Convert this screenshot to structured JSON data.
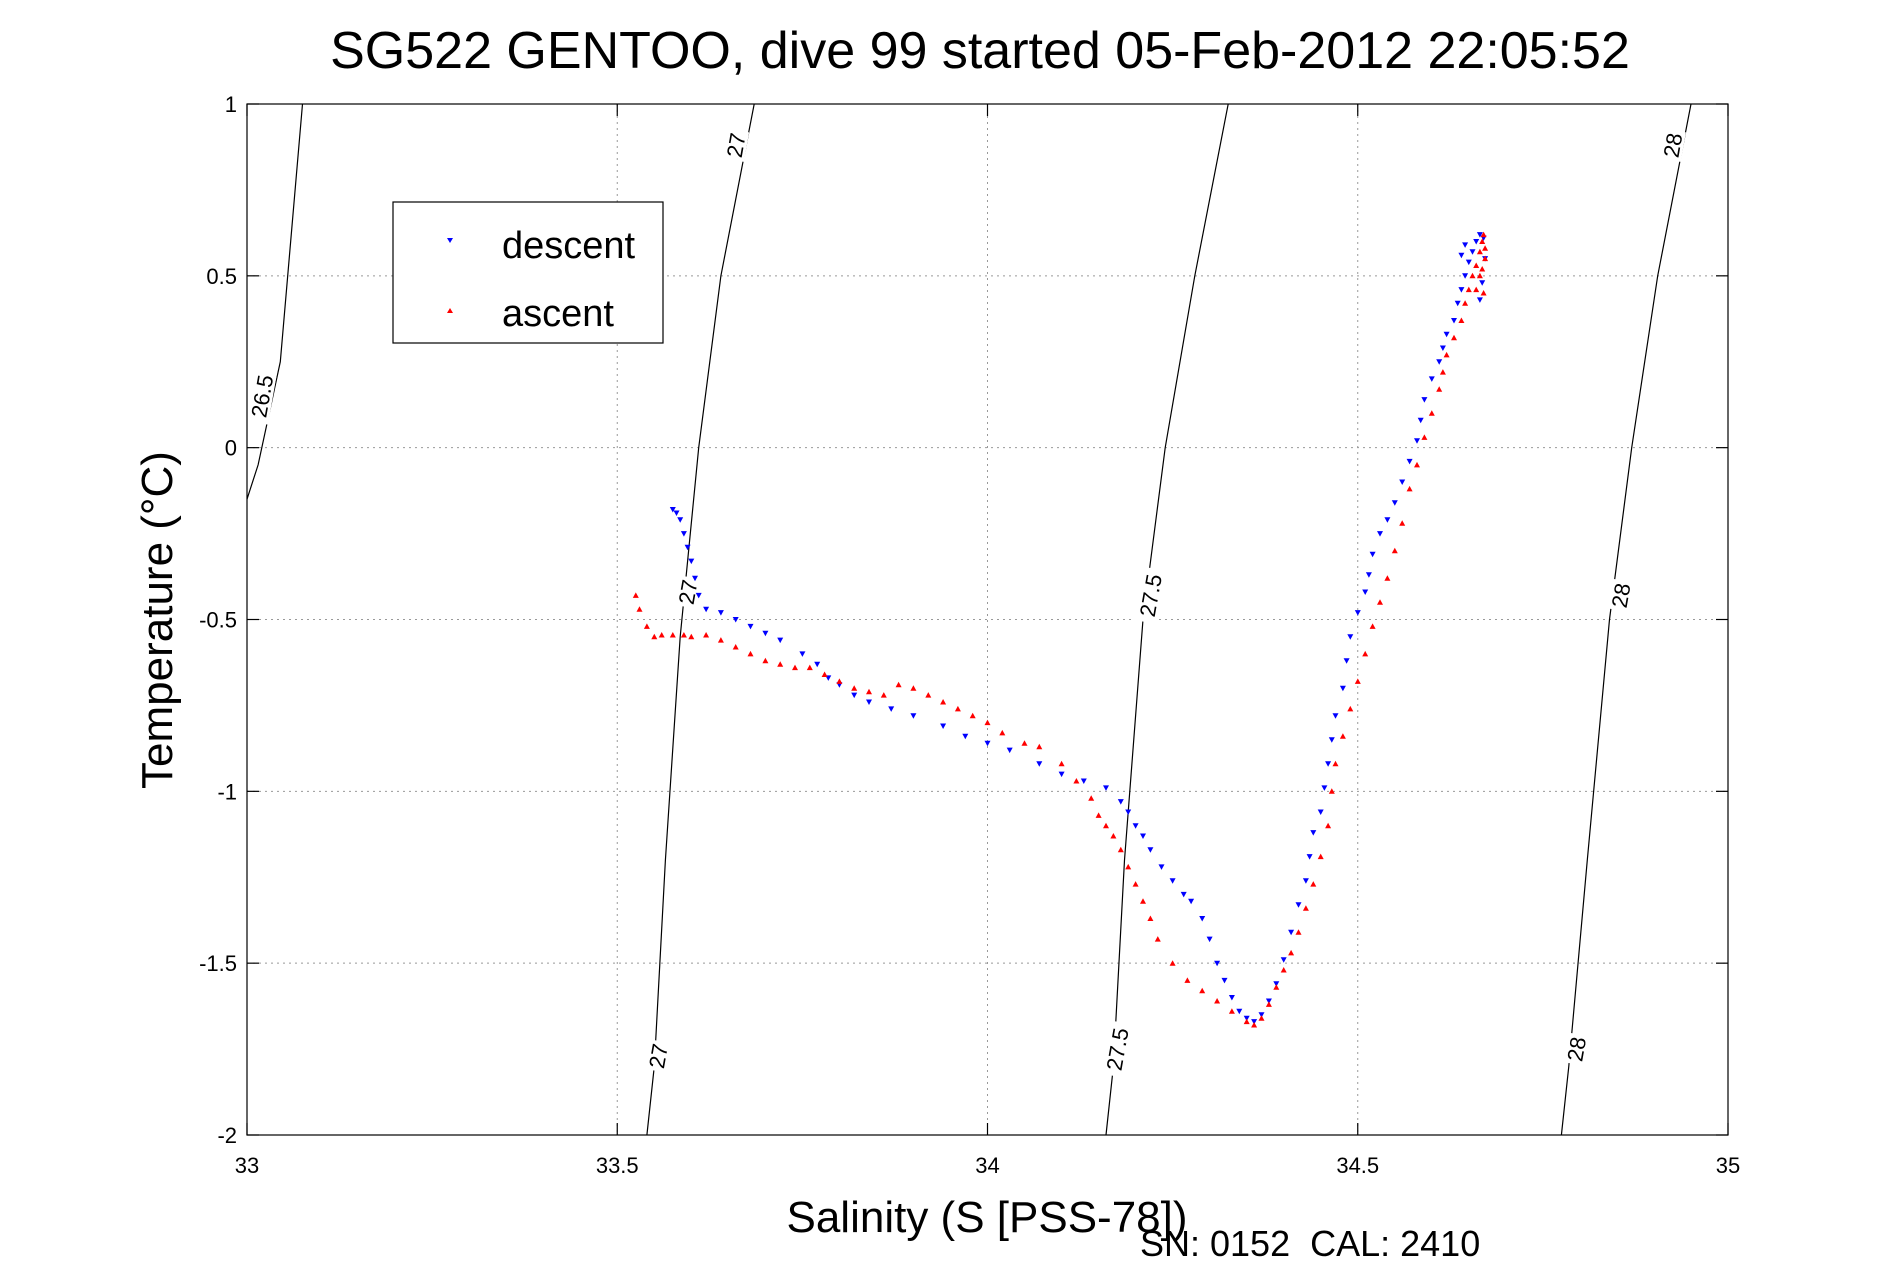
{
  "chart_data": {
    "type": "scatter",
    "title": "SG522 GENTOO, dive 99 started 05-Feb-2012 22:05:52",
    "xlabel": "Salinity (S [PSS-78])",
    "ylabel": "Temperature (°C)",
    "footer": "SN: 0152  CAL: 2410",
    "xlim": [
      33,
      35
    ],
    "ylim": [
      -2,
      1
    ],
    "xticks": [
      33,
      33.5,
      34,
      34.5,
      35
    ],
    "xtick_labels": [
      "33",
      "33.5",
      "34",
      "34.5",
      "35"
    ],
    "yticks": [
      1,
      0.5,
      0,
      -0.5,
      -1,
      -1.5,
      -2
    ],
    "ytick_labels": [
      "1",
      "0.5",
      "0",
      "-0.5",
      "-1",
      "-1.5",
      "-2"
    ],
    "grid": true,
    "legend_position": "top-left",
    "series": [
      {
        "name": "descent",
        "color": "#0000ff",
        "marker": "triangle-down",
        "points": [
          [
            33.575,
            -0.18
          ],
          [
            33.58,
            -0.19
          ],
          [
            33.585,
            -0.21
          ],
          [
            33.59,
            -0.25
          ],
          [
            33.595,
            -0.29
          ],
          [
            33.6,
            -0.33
          ],
          [
            33.605,
            -0.38
          ],
          [
            33.61,
            -0.43
          ],
          [
            33.62,
            -0.47
          ],
          [
            33.64,
            -0.48
          ],
          [
            33.66,
            -0.5
          ],
          [
            33.68,
            -0.52
          ],
          [
            33.7,
            -0.54
          ],
          [
            33.72,
            -0.56
          ],
          [
            33.75,
            -0.6
          ],
          [
            33.77,
            -0.63
          ],
          [
            33.785,
            -0.67
          ],
          [
            33.8,
            -0.69
          ],
          [
            33.82,
            -0.72
          ],
          [
            33.84,
            -0.74
          ],
          [
            33.87,
            -0.76
          ],
          [
            33.9,
            -0.78
          ],
          [
            33.94,
            -0.81
          ],
          [
            33.97,
            -0.84
          ],
          [
            34.0,
            -0.86
          ],
          [
            34.03,
            -0.88
          ],
          [
            34.07,
            -0.92
          ],
          [
            34.1,
            -0.95
          ],
          [
            34.13,
            -0.97
          ],
          [
            34.16,
            -0.99
          ],
          [
            34.18,
            -1.03
          ],
          [
            34.19,
            -1.06
          ],
          [
            34.2,
            -1.1
          ],
          [
            34.21,
            -1.13
          ],
          [
            34.22,
            -1.17
          ],
          [
            34.235,
            -1.22
          ],
          [
            34.25,
            -1.26
          ],
          [
            34.265,
            -1.3
          ],
          [
            34.275,
            -1.32
          ],
          [
            34.29,
            -1.37
          ],
          [
            34.3,
            -1.43
          ],
          [
            34.31,
            -1.5
          ],
          [
            34.32,
            -1.55
          ],
          [
            34.33,
            -1.6
          ],
          [
            34.34,
            -1.64
          ],
          [
            34.35,
            -1.66
          ],
          [
            34.36,
            -1.67
          ],
          [
            34.37,
            -1.65
          ],
          [
            34.38,
            -1.61
          ],
          [
            34.39,
            -1.56
          ],
          [
            34.4,
            -1.49
          ],
          [
            34.41,
            -1.41
          ],
          [
            34.42,
            -1.33
          ],
          [
            34.43,
            -1.26
          ],
          [
            34.435,
            -1.19
          ],
          [
            34.44,
            -1.12
          ],
          [
            34.45,
            -1.06
          ],
          [
            34.455,
            -0.99
          ],
          [
            34.46,
            -0.92
          ],
          [
            34.465,
            -0.85
          ],
          [
            34.47,
            -0.78
          ],
          [
            34.48,
            -0.7
          ],
          [
            34.485,
            -0.62
          ],
          [
            34.49,
            -0.55
          ],
          [
            34.5,
            -0.48
          ],
          [
            34.51,
            -0.42
          ],
          [
            34.515,
            -0.37
          ],
          [
            34.52,
            -0.31
          ],
          [
            34.53,
            -0.25
          ],
          [
            34.54,
            -0.21
          ],
          [
            34.55,
            -0.16
          ],
          [
            34.56,
            -0.1
          ],
          [
            34.57,
            -0.04
          ],
          [
            34.58,
            0.02
          ],
          [
            34.585,
            0.08
          ],
          [
            34.59,
            0.14
          ],
          [
            34.6,
            0.2
          ],
          [
            34.61,
            0.25
          ],
          [
            34.615,
            0.29
          ],
          [
            34.62,
            0.33
          ],
          [
            34.63,
            0.37
          ],
          [
            34.635,
            0.42
          ],
          [
            34.64,
            0.46
          ],
          [
            34.645,
            0.5
          ],
          [
            34.65,
            0.54
          ],
          [
            34.655,
            0.57
          ],
          [
            34.66,
            0.6
          ],
          [
            34.665,
            0.62
          ],
          [
            34.67,
            0.61
          ],
          [
            34.672,
            0.55
          ],
          [
            34.668,
            0.48
          ],
          [
            34.665,
            0.43
          ],
          [
            34.64,
            0.56
          ],
          [
            34.645,
            0.59
          ]
        ]
      },
      {
        "name": "ascent",
        "color": "#ff0000",
        "marker": "triangle-up",
        "points": [
          [
            33.525,
            -0.43
          ],
          [
            33.53,
            -0.47
          ],
          [
            33.54,
            -0.52
          ],
          [
            33.55,
            -0.55
          ],
          [
            33.56,
            -0.545
          ],
          [
            33.575,
            -0.545
          ],
          [
            33.59,
            -0.545
          ],
          [
            33.6,
            -0.55
          ],
          [
            33.62,
            -0.545
          ],
          [
            33.64,
            -0.56
          ],
          [
            33.66,
            -0.58
          ],
          [
            33.68,
            -0.6
          ],
          [
            33.7,
            -0.62
          ],
          [
            33.72,
            -0.63
          ],
          [
            33.74,
            -0.64
          ],
          [
            33.76,
            -0.64
          ],
          [
            33.78,
            -0.66
          ],
          [
            33.8,
            -0.68
          ],
          [
            33.82,
            -0.7
          ],
          [
            33.84,
            -0.71
          ],
          [
            33.86,
            -0.72
          ],
          [
            33.88,
            -0.69
          ],
          [
            33.9,
            -0.7
          ],
          [
            33.92,
            -0.72
          ],
          [
            33.94,
            -0.74
          ],
          [
            33.96,
            -0.76
          ],
          [
            33.98,
            -0.78
          ],
          [
            34.0,
            -0.8
          ],
          [
            34.02,
            -0.83
          ],
          [
            34.05,
            -0.86
          ],
          [
            34.07,
            -0.87
          ],
          [
            34.1,
            -0.92
          ],
          [
            34.12,
            -0.97
          ],
          [
            34.14,
            -1.02
          ],
          [
            34.15,
            -1.07
          ],
          [
            34.16,
            -1.1
          ],
          [
            34.17,
            -1.13
          ],
          [
            34.18,
            -1.17
          ],
          [
            34.19,
            -1.22
          ],
          [
            34.2,
            -1.27
          ],
          [
            34.21,
            -1.32
          ],
          [
            34.22,
            -1.37
          ],
          [
            34.23,
            -1.43
          ],
          [
            34.25,
            -1.5
          ],
          [
            34.27,
            -1.55
          ],
          [
            34.29,
            -1.58
          ],
          [
            34.31,
            -1.61
          ],
          [
            34.33,
            -1.64
          ],
          [
            34.35,
            -1.67
          ],
          [
            34.36,
            -1.68
          ],
          [
            34.37,
            -1.66
          ],
          [
            34.38,
            -1.62
          ],
          [
            34.39,
            -1.57
          ],
          [
            34.4,
            -1.52
          ],
          [
            34.41,
            -1.47
          ],
          [
            34.42,
            -1.41
          ],
          [
            34.43,
            -1.34
          ],
          [
            34.44,
            -1.27
          ],
          [
            34.45,
            -1.19
          ],
          [
            34.46,
            -1.1
          ],
          [
            34.465,
            -1.0
          ],
          [
            34.47,
            -0.92
          ],
          [
            34.48,
            -0.84
          ],
          [
            34.49,
            -0.76
          ],
          [
            34.5,
            -0.68
          ],
          [
            34.51,
            -0.6
          ],
          [
            34.52,
            -0.52
          ],
          [
            34.53,
            -0.45
          ],
          [
            34.54,
            -0.38
          ],
          [
            34.55,
            -0.3
          ],
          [
            34.56,
            -0.22
          ],
          [
            34.57,
            -0.12
          ],
          [
            34.58,
            -0.05
          ],
          [
            34.59,
            0.03
          ],
          [
            34.6,
            0.1
          ],
          [
            34.61,
            0.17
          ],
          [
            34.615,
            0.22
          ],
          [
            34.62,
            0.27
          ],
          [
            34.63,
            0.32
          ],
          [
            34.64,
            0.37
          ],
          [
            34.645,
            0.42
          ],
          [
            34.65,
            0.46
          ],
          [
            34.655,
            0.5
          ],
          [
            34.66,
            0.53
          ],
          [
            34.665,
            0.57
          ],
          [
            34.668,
            0.6
          ],
          [
            34.67,
            0.62
          ],
          [
            34.672,
            0.58
          ],
          [
            34.668,
            0.52
          ],
          [
            34.66,
            0.46
          ],
          [
            34.672,
            0.55
          ],
          [
            34.665,
            0.5
          ],
          [
            34.67,
            0.45
          ]
        ]
      }
    ],
    "contours": [
      {
        "level_label": "26.5",
        "points": [
          [
            33.0,
            -0.15
          ],
          [
            33.015,
            -0.05
          ],
          [
            33.045,
            0.25
          ],
          [
            33.075,
            1.0
          ]
        ]
      },
      {
        "level_label": "27",
        "points": [
          [
            33.54,
            -2.0
          ],
          [
            33.55,
            -1.8
          ],
          [
            33.565,
            -1.2
          ],
          [
            33.585,
            -0.55
          ],
          [
            33.61,
            0.0
          ],
          [
            33.64,
            0.5
          ],
          [
            33.685,
            1.0
          ]
        ]
      },
      {
        "level_label": "27.5",
        "points": [
          [
            34.16,
            -2.0
          ],
          [
            34.17,
            -1.8
          ],
          [
            34.185,
            -1.2
          ],
          [
            34.21,
            -0.5
          ],
          [
            34.24,
            0.0
          ],
          [
            34.28,
            0.5
          ],
          [
            34.325,
            1.0
          ]
        ]
      },
      {
        "level_label": "28",
        "points": [
          [
            34.775,
            -2.0
          ],
          [
            34.785,
            -1.8
          ],
          [
            34.81,
            -1.2
          ],
          [
            34.84,
            -0.5
          ],
          [
            34.87,
            0.0
          ],
          [
            34.905,
            0.5
          ],
          [
            34.95,
            1.0
          ]
        ]
      }
    ],
    "contour_labels": [
      {
        "text": "26.5",
        "at": [
          33.02,
          0.15
        ]
      },
      {
        "text": "27",
        "at": [
          33.66,
          0.88
        ]
      },
      {
        "text": "27",
        "at": [
          33.595,
          -0.42
        ]
      },
      {
        "text": "27",
        "at": [
          33.555,
          -1.77
        ]
      },
      {
        "text": "27.5",
        "at": [
          34.22,
          -0.43
        ]
      },
      {
        "text": "27.5",
        "at": [
          34.175,
          -1.75
        ]
      },
      {
        "text": "28",
        "at": [
          34.925,
          0.88
        ]
      },
      {
        "text": "28",
        "at": [
          34.855,
          -0.43
        ]
      },
      {
        "text": "28",
        "at": [
          34.795,
          -1.75
        ]
      }
    ]
  }
}
